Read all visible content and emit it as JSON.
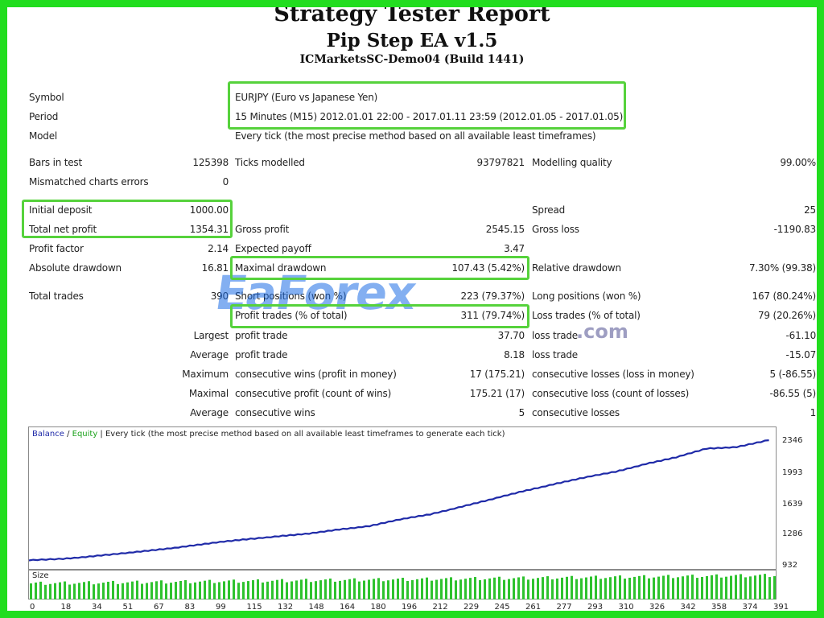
{
  "report": {
    "title": "Strategy Tester Report",
    "ea_name": "Pip Step EA v1.5",
    "server": "ICMarketsSC-Demo04 (Build 1441)"
  },
  "summary": {
    "symbol_label": "Symbol",
    "symbol_value": "EURJPY (Euro vs Japanese Yen)",
    "period_label": "Period",
    "period_value": "15 Minutes (M15) 2012.01.01 22:00 - 2017.01.11 23:59 (2012.01.05 - 2017.01.05)",
    "model_label": "Model",
    "model_value": "Every tick (the most precise method based on all available least timeframes)",
    "bars_label": "Bars in test",
    "bars_value": "125398",
    "ticks_label": "Ticks modelled",
    "ticks_value": "93797821",
    "quality_label": "Modelling quality",
    "quality_value": "99.00%",
    "mismatched_label": "Mismatched charts errors",
    "mismatched_value": "0",
    "deposit_label": "Initial deposit",
    "deposit_value": "1000.00",
    "spread_label": "Spread",
    "spread_value": "25",
    "net_profit_label": "Total net profit",
    "net_profit_value": "1354.31",
    "gross_profit_label": "Gross profit",
    "gross_profit_value": "2545.15",
    "gross_loss_label": "Gross loss",
    "gross_loss_value": "-1190.83",
    "profit_factor_label": "Profit factor",
    "profit_factor_value": "2.14",
    "expected_payoff_label": "Expected payoff",
    "expected_payoff_value": "3.47",
    "abs_dd_label": "Absolute drawdown",
    "abs_dd_value": "16.81",
    "max_dd_label": "Maximal drawdown",
    "max_dd_value": "107.43 (5.42%)",
    "rel_dd_label": "Relative drawdown",
    "rel_dd_value": "7.30% (99.38)",
    "total_trades_label": "Total trades",
    "total_trades_value": "390",
    "short_label": "Short positions (won %)",
    "short_value": "223 (79.37%)",
    "long_label": "Long positions (won %)",
    "long_value": "167 (80.24%)",
    "profit_trades_label": "Profit trades (% of total)",
    "profit_trades_value": "311 (79.74%)",
    "loss_trades_label": "Loss trades (% of total)",
    "loss_trades_value": "79 (20.26%)",
    "largest_label": "Largest",
    "largest_profit_label": "profit trade",
    "largest_profit_value": "37.70",
    "largest_loss_label": "loss trade",
    "largest_loss_value": "-61.10",
    "average_label": "Average",
    "average_profit_label": "profit trade",
    "average_profit_value": "8.18",
    "average_loss_label": "loss trade",
    "average_loss_value": "-15.07",
    "maximum_label": "Maximum",
    "max_cons_wins_label": "consecutive wins (profit in money)",
    "max_cons_wins_value": "17 (175.21)",
    "max_cons_losses_label": "consecutive losses (loss in money)",
    "max_cons_losses_value": "5 (-86.55)",
    "maximal_label": "Maximal",
    "maximal_profit_label": "consecutive profit (count of wins)",
    "maximal_profit_value": "175.21 (17)",
    "maximal_loss_label": "consecutive loss (count of losses)",
    "maximal_loss_value": "-86.55 (5)",
    "average2_label": "Average",
    "avg_cons_wins_label": "consecutive wins",
    "avg_cons_wins_value": "5",
    "avg_cons_losses_label": "consecutive losses",
    "avg_cons_losses_value": "1"
  },
  "watermark": {
    "brand": "EaForex",
    "suffix": ".com"
  },
  "colors": {
    "highlight": "#56d23c",
    "frame": "#22dd1f",
    "balance": "#1f2aa8",
    "equity": "#1aa11a",
    "size_bars": "#2ec22e"
  },
  "chart": {
    "legend_balance": "Balance",
    "legend_sep": " / ",
    "legend_equity": "Equity",
    "legend_rest": " | Every tick (the most precise method based on all available least timeframes to generate each tick)",
    "size_label": "Size",
    "y_ticks": [
      "2346",
      "1993",
      "1639",
      "1286",
      "932"
    ],
    "x_ticks": [
      "0",
      "18",
      "34",
      "51",
      "67",
      "83",
      "99",
      "115",
      "132",
      "148",
      "164",
      "180",
      "196",
      "212",
      "229",
      "245",
      "261",
      "277",
      "293",
      "310",
      "326",
      "342",
      "358",
      "374",
      "391"
    ]
  },
  "chart_data": {
    "type": "line",
    "series": [
      {
        "name": "Balance",
        "x": [
          0,
          18,
          34,
          51,
          67,
          83,
          99,
          115,
          132,
          148,
          164,
          180,
          196,
          212,
          229,
          245,
          261,
          277,
          293,
          310,
          326,
          342,
          358,
          374,
          391
        ],
        "values": [
          1000,
          1020,
          1050,
          1080,
          1120,
          1160,
          1200,
          1240,
          1275,
          1300,
          1350,
          1390,
          1460,
          1520,
          1610,
          1690,
          1780,
          1860,
          1930,
          2000,
          2090,
          2160,
          2260,
          2280,
          2354
        ]
      }
    ],
    "ylim": [
      932,
      2400
    ],
    "xlim": [
      0,
      395
    ],
    "grid": false
  }
}
